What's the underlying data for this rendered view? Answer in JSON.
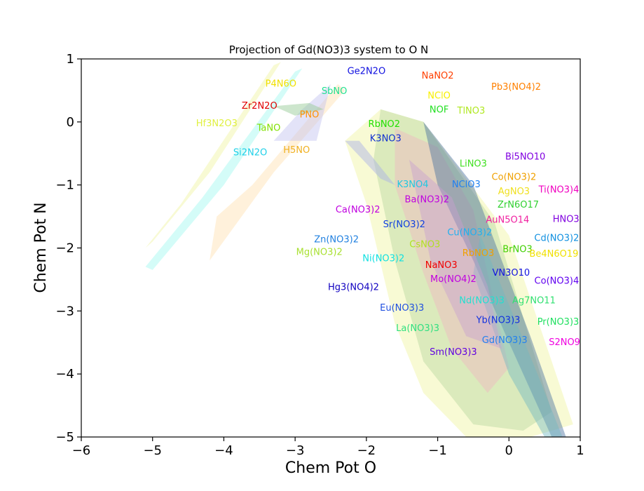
{
  "chart_data": {
    "type": "scatter",
    "title": "Projection of Gd(NO3)3 system to O N",
    "xlabel": "Chem Pot O",
    "ylabel": "Chem Pot N",
    "xlim": [
      -6,
      1
    ],
    "ylim": [
      -5,
      1
    ],
    "xticks": [
      -6,
      -5,
      -4,
      -3,
      -2,
      -1,
      0,
      1
    ],
    "yticks": [
      -5,
      -4,
      -3,
      -2,
      -1,
      0,
      1
    ],
    "xtick_labels": [
      "−6",
      "−5",
      "−4",
      "−3",
      "−2",
      "−1",
      "0",
      "1"
    ],
    "ytick_labels": [
      "−5",
      "−4",
      "−3",
      "−2",
      "−1",
      "0",
      "1"
    ],
    "grid": false,
    "regions": [
      {
        "color": "#f0f5a0",
        "points": [
          [
            -5.1,
            -2.0
          ],
          [
            -4.6,
            -1.3
          ],
          [
            -3.3,
            0.9
          ],
          [
            -3.2,
            0.95
          ],
          [
            -4.2,
            -0.8
          ],
          [
            -5.0,
            -1.9
          ]
        ]
      },
      {
        "color": "#a0f8f0",
        "points": [
          [
            -5.1,
            -2.3
          ],
          [
            -4.3,
            -1.2
          ],
          [
            -3.0,
            0.8
          ],
          [
            -2.9,
            0.85
          ],
          [
            -4.0,
            -1.0
          ],
          [
            -5.0,
            -2.35
          ]
        ]
      },
      {
        "color": "#ffe0b0",
        "points": [
          [
            -4.1,
            -1.5
          ],
          [
            -3.6,
            -1.0
          ],
          [
            -2.4,
            0.6
          ],
          [
            -2.3,
            0.5
          ],
          [
            -3.3,
            -0.8
          ],
          [
            -4.2,
            -2.2
          ]
        ]
      },
      {
        "color": "#c0c0f0",
        "points": [
          [
            -3.3,
            -0.3
          ],
          [
            -2.9,
            0.2
          ],
          [
            -2.5,
            0.6
          ],
          [
            -2.7,
            -0.3
          ]
        ]
      },
      {
        "color": "#90c890",
        "points": [
          [
            -3.3,
            0.25
          ],
          [
            -2.8,
            0.3
          ],
          [
            -2.6,
            0.2
          ],
          [
            -3.0,
            0.1
          ]
        ]
      },
      {
        "color": "#f0f5a0",
        "points": [
          [
            -2.3,
            -0.3
          ],
          [
            -1.8,
            0.2
          ],
          [
            -1.2,
            0.0
          ],
          [
            0.0,
            -1.8
          ],
          [
            0.9,
            -4.8
          ],
          [
            0.3,
            -5.0
          ],
          [
            -0.6,
            -5.0
          ],
          [
            -1.2,
            -4.3
          ],
          [
            -1.6,
            -3.2
          ],
          [
            -2.0,
            -1.3
          ]
        ]
      },
      {
        "color": "#b8d8a0",
        "points": [
          [
            -1.8,
            0.2
          ],
          [
            -1.2,
            0.0
          ],
          [
            -0.2,
            -1.6
          ],
          [
            0.6,
            -4.6
          ],
          [
            0.2,
            -4.9
          ],
          [
            -0.5,
            -4.8
          ],
          [
            -1.2,
            -3.8
          ],
          [
            -1.6,
            -2.2
          ],
          [
            -1.9,
            -0.6
          ]
        ]
      },
      {
        "color": "#f0b8c0",
        "points": [
          [
            -1.6,
            -0.1
          ],
          [
            -1.0,
            -0.4
          ],
          [
            -0.5,
            -1.4
          ],
          [
            0.0,
            -3.9
          ],
          [
            -0.3,
            -4.3
          ],
          [
            -0.8,
            -3.6
          ],
          [
            -1.2,
            -2.4
          ],
          [
            -1.6,
            -1.0
          ]
        ]
      },
      {
        "color": "#4a70a0",
        "points": [
          [
            -1.2,
            0.0
          ],
          [
            -0.5,
            -1.0
          ],
          [
            0.3,
            -3.4
          ],
          [
            0.8,
            -5.0
          ],
          [
            0.6,
            -5.0
          ],
          [
            0.0,
            -3.5
          ],
          [
            -0.5,
            -2.2
          ],
          [
            -1.0,
            -1.0
          ]
        ]
      },
      {
        "color": "#70b8c0",
        "points": [
          [
            -0.4,
            -1.8
          ],
          [
            0.4,
            -4.0
          ],
          [
            0.75,
            -5.0
          ],
          [
            0.5,
            -5.0
          ],
          [
            0.0,
            -4.0
          ],
          [
            -0.5,
            -2.4
          ]
        ]
      },
      {
        "color": "#c8a0d0",
        "points": [
          [
            -1.4,
            -0.6
          ],
          [
            -0.8,
            -1.2
          ],
          [
            -0.3,
            -2.6
          ],
          [
            -0.1,
            -3.6
          ],
          [
            -0.6,
            -3.4
          ],
          [
            -1.1,
            -2.2
          ]
        ]
      },
      {
        "color": "#a8b0e8",
        "points": [
          [
            -2.3,
            -0.3
          ],
          [
            -2.1,
            -0.3
          ],
          [
            -1.6,
            -1.0
          ],
          [
            -1.8,
            -0.9
          ]
        ]
      }
    ],
    "labels": [
      {
        "text": "Ge2N2O",
        "x": -2.0,
        "y": 0.8,
        "color": "#1010e0"
      },
      {
        "text": "NaNO2",
        "x": -1.0,
        "y": 0.73,
        "color": "#ff4000"
      },
      {
        "text": "Pb3(NO4)2",
        "x": 0.1,
        "y": 0.55,
        "color": "#ff8000"
      },
      {
        "text": "P4N6O",
        "x": -3.2,
        "y": 0.6,
        "color": "#f0e000"
      },
      {
        "text": "SbNO",
        "x": -2.45,
        "y": 0.48,
        "color": "#20e090"
      },
      {
        "text": "NClO",
        "x": -0.98,
        "y": 0.41,
        "color": "#f8f000"
      },
      {
        "text": "Zr2N2O",
        "x": -3.5,
        "y": 0.25,
        "color": "#e00000"
      },
      {
        "text": "NOF",
        "x": -0.98,
        "y": 0.19,
        "color": "#20e020"
      },
      {
        "text": "TlNO3",
        "x": -0.53,
        "y": 0.17,
        "color": "#b0e820"
      },
      {
        "text": "PNO",
        "x": -2.8,
        "y": 0.11,
        "color": "#ff9000"
      },
      {
        "text": "Hf3N2O3",
        "x": -4.1,
        "y": -0.03,
        "color": "#e0f040"
      },
      {
        "text": "RbNO2",
        "x": -1.75,
        "y": -0.04,
        "color": "#20e000"
      },
      {
        "text": "TaNO",
        "x": -3.37,
        "y": -0.1,
        "color": "#80e000"
      },
      {
        "text": "K3NO3",
        "x": -1.73,
        "y": -0.27,
        "color": "#1030d0"
      },
      {
        "text": "H5NO",
        "x": -2.98,
        "y": -0.45,
        "color": "#f0b020"
      },
      {
        "text": "Si2N2O",
        "x": -3.63,
        "y": -0.49,
        "color": "#20d0e8"
      },
      {
        "text": "Bi5NO10",
        "x": 0.23,
        "y": -0.56,
        "color": "#8000e0"
      },
      {
        "text": "LiNO3",
        "x": -0.5,
        "y": -0.67,
        "color": "#40e020"
      },
      {
        "text": "Co(NO3)2",
        "x": 0.07,
        "y": -0.88,
        "color": "#f0a000"
      },
      {
        "text": "K3NO4",
        "x": -1.35,
        "y": -1.0,
        "color": "#20c8e0"
      },
      {
        "text": "NClO3",
        "x": -0.6,
        "y": -1.0,
        "color": "#2080f0"
      },
      {
        "text": "AgNO3",
        "x": 0.07,
        "y": -1.11,
        "color": "#f0e020"
      },
      {
        "text": "Ti(NO3)4",
        "x": 0.7,
        "y": -1.08,
        "color": "#f000c0"
      },
      {
        "text": "Ba(NO3)2",
        "x": -1.15,
        "y": -1.24,
        "color": "#c000e0"
      },
      {
        "text": "ZrN6O17",
        "x": 0.13,
        "y": -1.32,
        "color": "#30d030"
      },
      {
        "text": "Ca(NO3)2",
        "x": -2.12,
        "y": -1.4,
        "color": "#c000e0"
      },
      {
        "text": "HNO3",
        "x": 0.8,
        "y": -1.55,
        "color": "#8000e0"
      },
      {
        "text": "AuN5O14",
        "x": -0.02,
        "y": -1.56,
        "color": "#f020a0"
      },
      {
        "text": "Sr(NO3)2",
        "x": -1.47,
        "y": -1.63,
        "color": "#1040e0"
      },
      {
        "text": "Cu(NO3)2",
        "x": -0.55,
        "y": -1.76,
        "color": "#20b0f0"
      },
      {
        "text": "Zn(NO3)2",
        "x": -2.42,
        "y": -1.87,
        "color": "#2080e0"
      },
      {
        "text": "Cd(NO3)2",
        "x": 0.67,
        "y": -1.85,
        "color": "#1090e0"
      },
      {
        "text": "CsNO3",
        "x": -1.18,
        "y": -1.95,
        "color": "#b0e020"
      },
      {
        "text": "Mg(NO3)2",
        "x": -2.66,
        "y": -2.07,
        "color": "#a8e030"
      },
      {
        "text": "BrNO3",
        "x": 0.12,
        "y": -2.03,
        "color": "#40d000"
      },
      {
        "text": "RbNO3",
        "x": -0.43,
        "y": -2.09,
        "color": "#f0a000"
      },
      {
        "text": "Be4N6O19",
        "x": 0.63,
        "y": -2.1,
        "color": "#f0e000"
      },
      {
        "text": "Ni(NO3)2",
        "x": -1.76,
        "y": -2.17,
        "color": "#10e0e0"
      },
      {
        "text": "NaNO3",
        "x": -0.95,
        "y": -2.28,
        "color": "#f00000"
      },
      {
        "text": "VN3O10",
        "x": 0.03,
        "y": -2.4,
        "color": "#1010e0"
      },
      {
        "text": "Mo(NO4)2",
        "x": -0.78,
        "y": -2.5,
        "color": "#c000e0"
      },
      {
        "text": "Co(NO3)4",
        "x": 0.67,
        "y": -2.53,
        "color": "#6000f0"
      },
      {
        "text": "Hg3(NO4)2",
        "x": -2.18,
        "y": -2.63,
        "color": "#1000c0"
      },
      {
        "text": "Nd(NO3)3",
        "x": -0.38,
        "y": -2.84,
        "color": "#20e0d0"
      },
      {
        "text": "Ag7NO11",
        "x": 0.35,
        "y": -2.84,
        "color": "#30e070"
      },
      {
        "text": "Eu(NO3)3",
        "x": -1.5,
        "y": -2.96,
        "color": "#2050e0"
      },
      {
        "text": "Yb(NO3)3",
        "x": -0.15,
        "y": -3.15,
        "color": "#1030e0"
      },
      {
        "text": "Pr(NO3)3",
        "x": 0.69,
        "y": -3.18,
        "color": "#20e060"
      },
      {
        "text": "La(NO3)3",
        "x": -1.28,
        "y": -3.28,
        "color": "#30e080"
      },
      {
        "text": "Gd(NO3)3",
        "x": -0.06,
        "y": -3.47,
        "color": "#2080f0"
      },
      {
        "text": "S2NO9",
        "x": 0.78,
        "y": -3.5,
        "color": "#f000e0"
      },
      {
        "text": "Sm(NO3)3",
        "x": -0.78,
        "y": -3.66,
        "color": "#6000e0"
      }
    ]
  }
}
